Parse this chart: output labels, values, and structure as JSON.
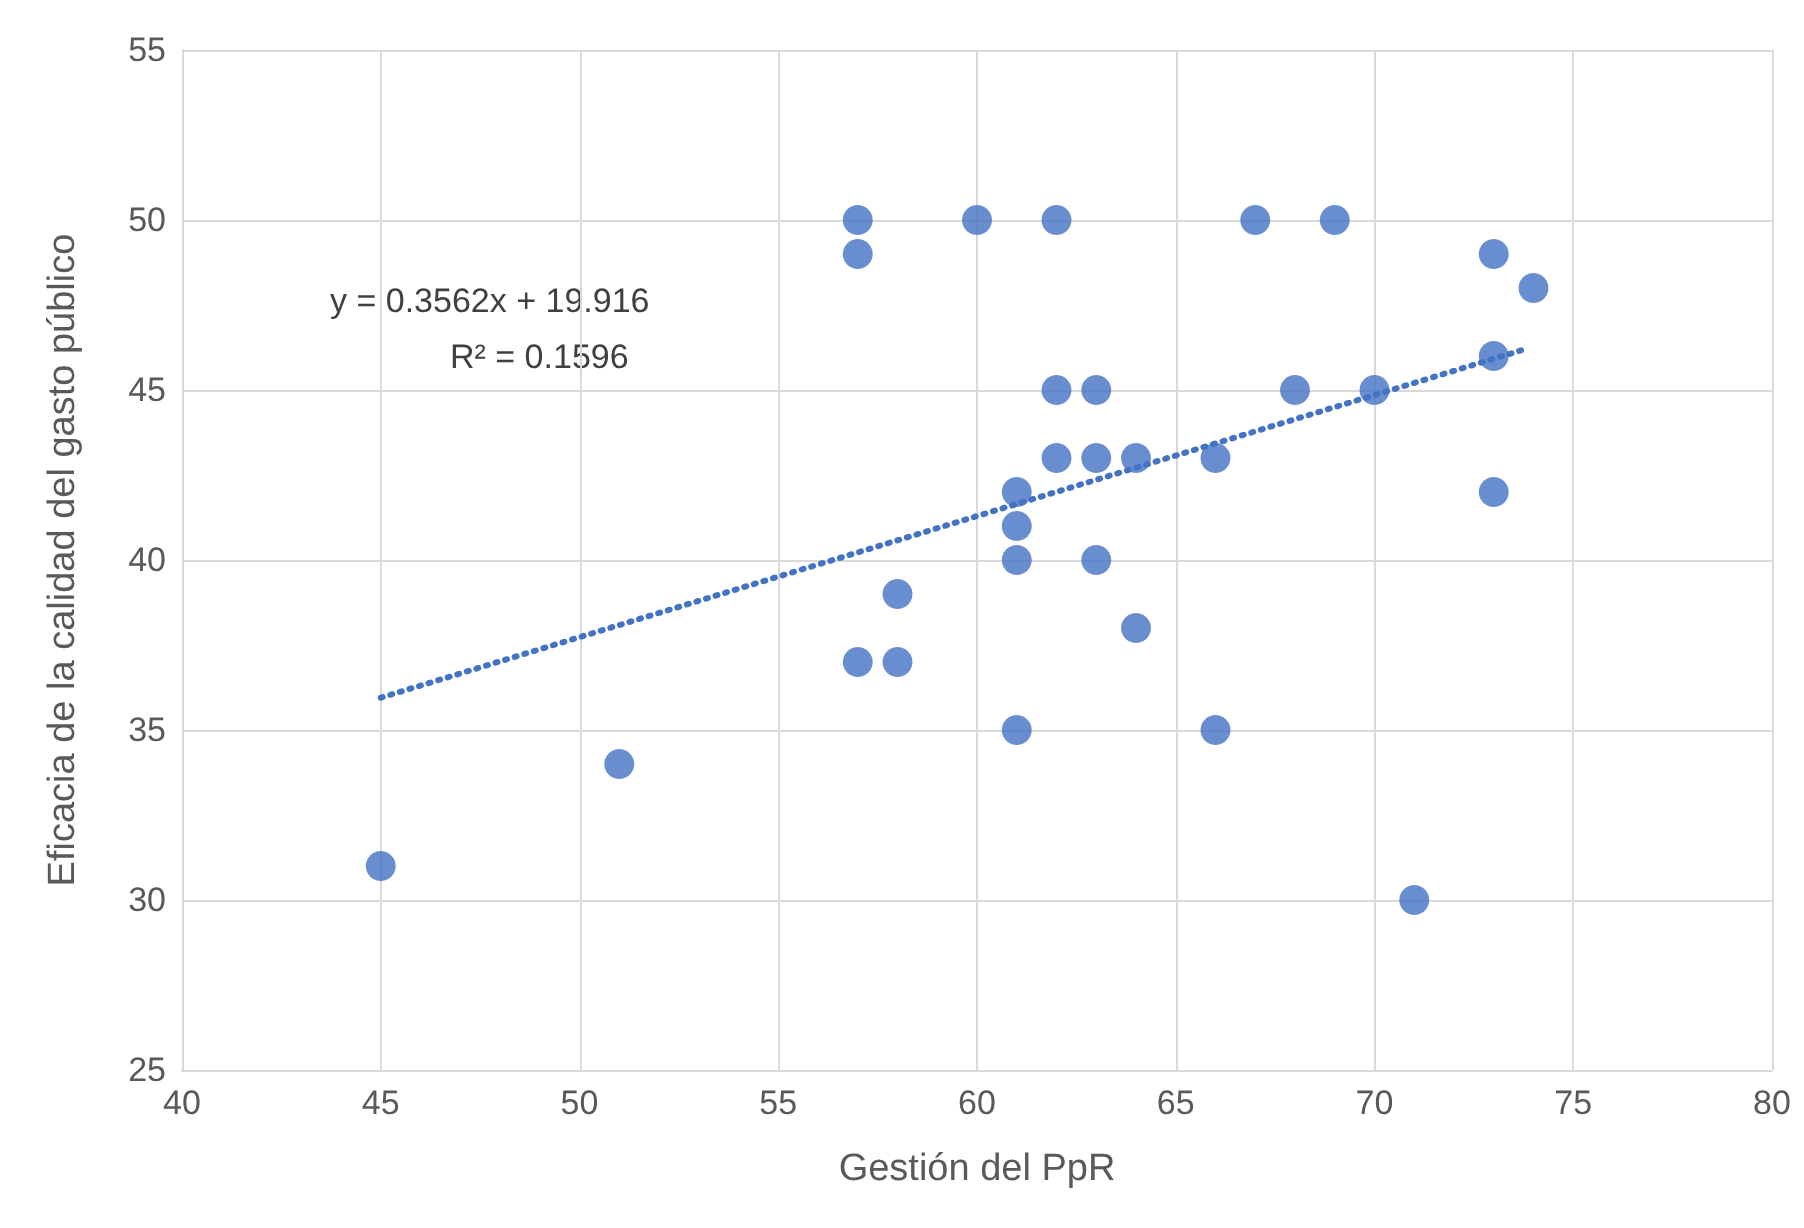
{
  "chart_data": {
    "type": "scatter",
    "xlabel": "Gestión del PpR",
    "ylabel": "Eficacia de la calidad del gasto público",
    "xlim": [
      40,
      80
    ],
    "xticks": [
      40,
      45,
      50,
      55,
      60,
      65,
      70,
      75,
      80
    ],
    "ylim": [
      25,
      55
    ],
    "yticks": [
      25,
      30,
      35,
      40,
      45,
      50,
      55
    ],
    "grid": true,
    "marker": "circle",
    "annotations": [
      "y = 0.3562x + 19.916",
      "R² = 0.1596"
    ],
    "series": [
      {
        "color": "#4472c4",
        "x": [
          45,
          51,
          57,
          57,
          57,
          58,
          58,
          60,
          61,
          61,
          61,
          61,
          62,
          62,
          62,
          63,
          63,
          63,
          64,
          64,
          66,
          66,
          67,
          68,
          69,
          70,
          71,
          73,
          73,
          73,
          74
        ],
        "values": [
          31,
          34,
          50,
          49,
          37,
          39,
          37,
          50,
          42,
          41,
          40,
          35,
          50,
          45,
          43,
          45,
          43,
          40,
          43,
          38,
          43,
          35,
          50,
          45,
          50,
          45,
          30,
          49,
          46,
          42,
          48
        ]
      },
      {
        "type": "line",
        "color": "#4472c4",
        "line_style": "dotted",
        "marker": "none",
        "x": [
          45,
          73.7
        ],
        "values": [
          35.95,
          46.17
        ]
      }
    ]
  }
}
